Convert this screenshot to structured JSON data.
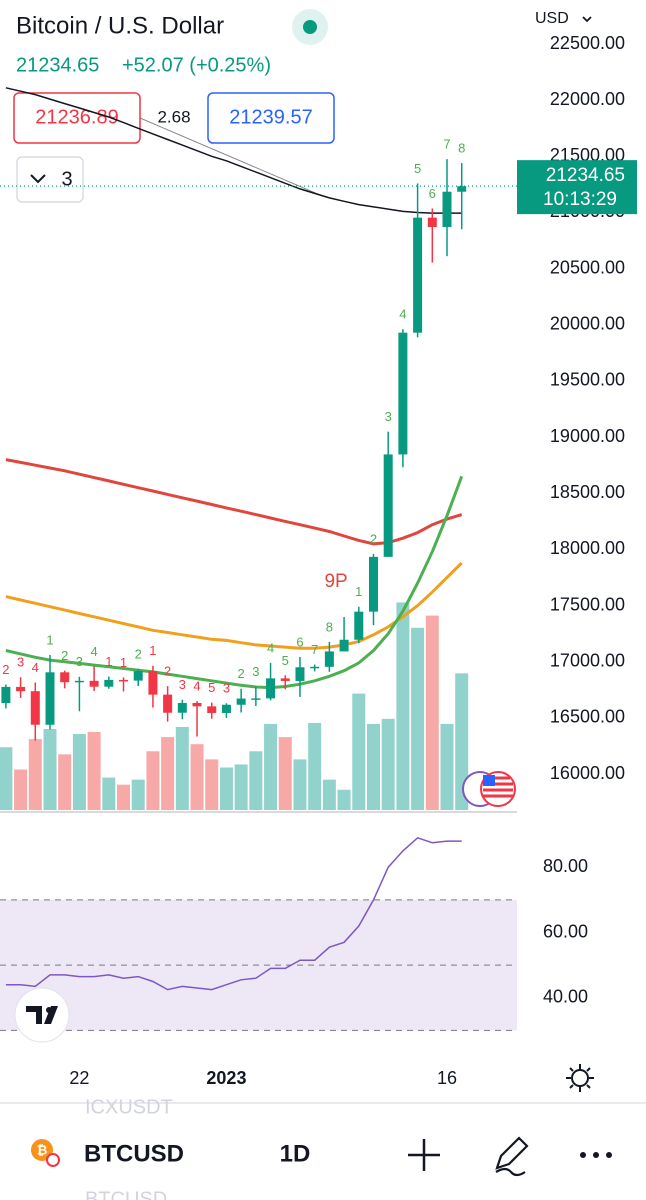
{
  "header": {
    "title": "Bitcoin / U.S. Dollar",
    "price": "21234.65",
    "change": "+52.07 (+0.25%)",
    "currency": "USD",
    "bid": "21236.89",
    "spread": "2.68",
    "ask": "21239.57",
    "indicators_count": "3"
  },
  "price_tag": {
    "price": "21234.65",
    "countdown": "10:13:29"
  },
  "chart_data": {
    "type": "candlestick",
    "ylim": [
      15680,
      22892
    ],
    "xlim": [
      -0.4,
      34.76
    ],
    "yticks": [
      {
        "value": 22500,
        "label": "22500.00"
      },
      {
        "value": 22000,
        "label": "22000.00"
      },
      {
        "value": 21500,
        "label": "21500.00"
      },
      {
        "value": 21000,
        "label": "21000.00"
      },
      {
        "value": 20500,
        "label": "20500.00"
      },
      {
        "value": 20000,
        "label": "20000.00"
      },
      {
        "value": 19500,
        "label": "19500.00"
      },
      {
        "value": 19000,
        "label": "19000.00"
      },
      {
        "value": 18500,
        "label": "18500.00"
      },
      {
        "value": 18000,
        "label": "18000.00"
      },
      {
        "value": 17500,
        "label": "17500.00"
      },
      {
        "value": 17000,
        "label": "17000.00"
      },
      {
        "value": 16500,
        "label": "16500.00"
      },
      {
        "value": 16000,
        "label": "16000.00"
      }
    ],
    "xticks": [
      {
        "value": 5,
        "label": "22"
      },
      {
        "value": 15,
        "label": "2023"
      },
      {
        "value": 30,
        "label": "16"
      }
    ],
    "last_price": 21234.65,
    "up_color": "#089981",
    "down_color": "#f23645",
    "open": [
      16632,
      16776,
      16738,
      16439,
      16906,
      16818,
      16830,
      16778,
      16838,
      16832,
      16917,
      16707,
      16546,
      16633,
      16603,
      16544,
      16617,
      16672,
      16674,
      16852,
      16829,
      16951,
      16955,
      17092,
      17196,
      17446,
      17934,
      18846,
      19930,
      20954,
      20871,
      21185
    ],
    "high": [
      16797,
      16862,
      16815,
      17061,
      16921,
      16866,
      16959,
      16868,
      16861,
      16937,
      16964,
      16783,
      16662,
      16649,
      16636,
      16630,
      16760,
      16778,
      16990,
      16879,
      17043,
      16975,
      17177,
      17398,
      17490,
      17960,
      19049,
      19961,
      21258,
      21036,
      21475,
      21440
    ],
    "low": [
      16584,
      16678,
      16297,
      16397,
      16763,
      16559,
      16740,
      16760,
      16735,
      16784,
      16592,
      16467,
      16488,
      16334,
      16493,
      16500,
      16548,
      16606,
      16656,
      16754,
      16687,
      16914,
      16910,
      17092,
      17165,
      17326,
      17934,
      18732,
      19888,
      20554,
      20611,
      20850
    ],
    "close": [
      16776,
      16738,
      16439,
      16906,
      16818,
      16830,
      16778,
      16838,
      16832,
      16917,
      16707,
      16546,
      16633,
      16603,
      16544,
      16617,
      16672,
      16674,
      16852,
      16829,
      16951,
      16955,
      17092,
      17196,
      17446,
      17934,
      18846,
      19930,
      20954,
      20871,
      21185,
      21234
    ],
    "volume": {
      "vlim": [
        0,
        800
      ],
      "up_color": "#92d2cc",
      "down_color": "#f7a9a7",
      "values": [
        62,
        40,
        70,
        80,
        55,
        75,
        77,
        32,
        25,
        30,
        58,
        72,
        82,
        65,
        50,
        42,
        45,
        58,
        85,
        72,
        50,
        86,
        30,
        20,
        115,
        85,
        90,
        205,
        180,
        192,
        85,
        135
      ]
    },
    "series": [
      {
        "name": "ema-black",
        "color": "#131722",
        "values": [
          22110,
          22080,
          22050,
          22010,
          21970,
          21930,
          21890,
          21850,
          21800,
          21750,
          21700,
          21650,
          21600,
          21550,
          21500,
          21460,
          21410,
          21360,
          21310,
          21260,
          21210,
          21170,
          21130,
          21100,
          21070,
          21050,
          21030,
          21010,
          21000,
          20995,
          20995,
          20995
        ]
      },
      {
        "name": "ma-red",
        "color": "#e0463b",
        "values": [
          18800,
          18775,
          18750,
          18725,
          18700,
          18670,
          18640,
          18610,
          18580,
          18550,
          18520,
          18490,
          18460,
          18430,
          18400,
          18370,
          18340,
          18310,
          18280,
          18250,
          18220,
          18190,
          18160,
          18120,
          18080,
          18050,
          18060,
          18100,
          18150,
          18220,
          18270,
          18310
        ]
      },
      {
        "name": "ma-orange",
        "color": "#f0a01e",
        "values": [
          17580,
          17550,
          17520,
          17490,
          17460,
          17430,
          17400,
          17370,
          17340,
          17310,
          17280,
          17260,
          17240,
          17220,
          17200,
          17190,
          17170,
          17150,
          17140,
          17130,
          17120,
          17120,
          17130,
          17150,
          17180,
          17240,
          17310,
          17400,
          17500,
          17620,
          17750,
          17880
        ]
      },
      {
        "name": "ma-green",
        "color": "#4caf50",
        "values": [
          17100,
          17070,
          17040,
          17015,
          17000,
          16985,
          16970,
          16955,
          16940,
          16925,
          16910,
          16890,
          16870,
          16850,
          16830,
          16810,
          16790,
          16775,
          16770,
          16780,
          16800,
          16830,
          16870,
          16920,
          16990,
          17100,
          17250,
          17450,
          17700,
          17980,
          18300,
          18650
        ]
      }
    ],
    "counts": [
      {
        "text": "2",
        "color": "#f23645"
      },
      {
        "text": "3",
        "color": "#f23645"
      },
      {
        "text": "4",
        "color": "#f23645"
      },
      {
        "text": "1",
        "color": "#4caf50"
      },
      {
        "text": "2",
        "color": "#4caf50"
      },
      {
        "text": "3",
        "color": "#4caf50"
      },
      {
        "text": "4",
        "color": "#4caf50"
      },
      {
        "text": "1",
        "color": "#f23645"
      },
      {
        "text": "1",
        "color": "#f23645"
      },
      {
        "text": "2",
        "color": "#4caf50"
      },
      {
        "text": "1",
        "color": "#f23645"
      },
      {
        "text": "2",
        "color": "#f23645"
      },
      {
        "text": "3",
        "color": "#f23645"
      },
      {
        "text": "4",
        "color": "#f23645"
      },
      {
        "text": "5",
        "color": "#f23645"
      },
      {
        "text": "3",
        "color": "#f23645"
      },
      {
        "text": "2",
        "color": "#4caf50"
      },
      {
        "text": "3",
        "color": "#4caf50"
      },
      {
        "text": "4",
        "color": "#4caf50"
      },
      {
        "text": "5",
        "color": "#4caf50"
      },
      {
        "text": "6",
        "color": "#4caf50"
      },
      {
        "text": "7",
        "color": "#4caf50"
      },
      {
        "text": "8",
        "color": "#4caf50"
      },
      {
        "text": "9P",
        "color": "#e0463b"
      },
      {
        "text": "1",
        "color": "#4caf50"
      },
      {
        "text": "2",
        "color": "#4caf50"
      },
      {
        "text": "3",
        "color": "#4caf50"
      },
      {
        "text": "4",
        "color": "#4caf50"
      },
      {
        "text": "5",
        "color": "#4caf50"
      },
      {
        "text": "6",
        "color": "#4caf50"
      },
      {
        "text": "7",
        "color": "#4caf50"
      },
      {
        "text": "8",
        "color": "#4caf50"
      }
    ]
  },
  "rsi": {
    "ylim": [
      24,
      96
    ],
    "color": "#7e57c2",
    "band_color": "#ede7f6",
    "yticks": [
      {
        "value": 80,
        "label": "80.00"
      },
      {
        "value": 60,
        "label": "60.00"
      },
      {
        "value": 40,
        "label": "40.00"
      }
    ],
    "levels": [
      70,
      50,
      30
    ],
    "values": [
      44,
      44,
      43.5,
      47,
      47,
      46.5,
      46.5,
      47,
      46,
      46.5,
      45,
      42.5,
      43.5,
      43,
      42.5,
      44,
      45.5,
      46,
      49,
      49,
      51.5,
      51.5,
      55.5,
      57,
      62,
      70,
      80,
      85,
      89,
      87.5,
      88,
      88
    ]
  },
  "toolbar": {
    "symbol": "BTCUSD",
    "interval": "1D",
    "ghost_above": "ICXUSDT",
    "ghost_below": "BTCUSD"
  }
}
